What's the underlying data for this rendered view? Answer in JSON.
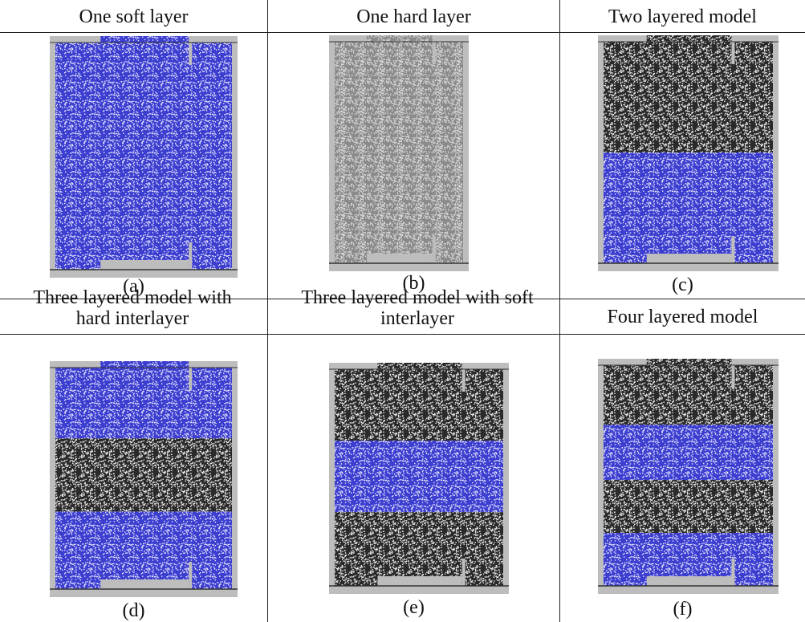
{
  "panels": [
    {
      "title": "One soft layer",
      "caption": "(a)"
    },
    {
      "title": "One hard layer",
      "caption": "(b)"
    },
    {
      "title": "Two layered model",
      "caption": "(c)"
    },
    {
      "title": "Three layered model with hard interlayer",
      "caption": "(d)"
    },
    {
      "title": "Three layered model with soft interlayer",
      "caption": "(e)"
    },
    {
      "title": "Four layered model",
      "caption": "(f)"
    }
  ]
}
